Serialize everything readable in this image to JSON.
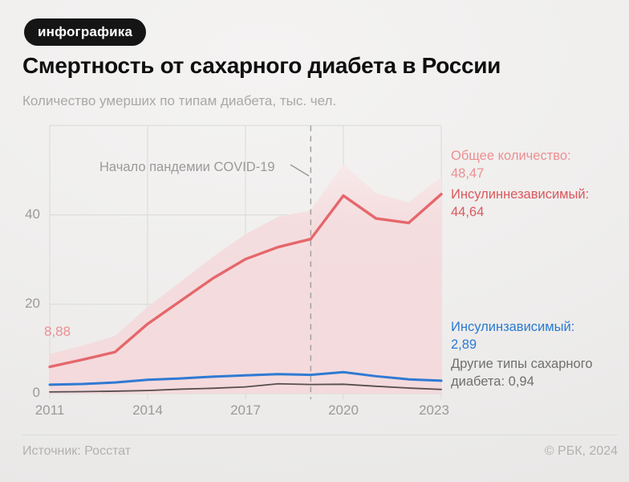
{
  "badge": {
    "label": "инфографика"
  },
  "header": {
    "title": "Смертность от сахарного диабета в России",
    "subtitle": "Количество умерших по типам диабета, тыс. чел."
  },
  "chart_data": {
    "type": "area",
    "unit": "тыс. чел.",
    "x": [
      2011,
      2012,
      2013,
      2014,
      2015,
      2016,
      2017,
      2018,
      2019,
      2020,
      2021,
      2022,
      2023
    ],
    "series": [
      {
        "name": "Общее количество",
        "kind": "area",
        "color": "#f5dbdd",
        "values": [
          8.88,
          10.7,
          12.9,
          19.4,
          25.0,
          30.6,
          35.7,
          39.6,
          41.0,
          51.3,
          44.9,
          42.8,
          48.47
        ]
      },
      {
        "name": "Инсулиннезависимый",
        "kind": "line",
        "color": "#e5676b",
        "width": 3.4,
        "values": [
          6.0,
          7.6,
          9.3,
          15.6,
          20.7,
          25.8,
          30.1,
          32.8,
          34.6,
          44.3,
          39.2,
          38.2,
          44.64
        ]
      },
      {
        "name": "Инсулинзависимый",
        "kind": "line",
        "color": "#2f7ad3",
        "width": 3,
        "values": [
          2.0,
          2.15,
          2.5,
          3.1,
          3.4,
          3.8,
          4.1,
          4.35,
          4.2,
          4.8,
          3.9,
          3.2,
          2.89
        ]
      },
      {
        "name": "Другие типы сахарного диабета",
        "kind": "line",
        "color": "#574d4f",
        "width": 1.8,
        "values": [
          0.38,
          0.45,
          0.55,
          0.7,
          1.0,
          1.2,
          1.5,
          2.2,
          2.05,
          2.1,
          1.65,
          1.25,
          0.94
        ]
      }
    ],
    "axes": {
      "x_ticks": [
        2011,
        2014,
        2017,
        2020,
        2023
      ],
      "y_ticks": [
        0,
        20,
        40
      ],
      "y_grid": [
        0,
        20,
        40,
        60
      ],
      "x_range": [
        2011,
        2023
      ],
      "y_range": [
        0,
        60
      ],
      "grid": true
    },
    "annotations": {
      "covid": {
        "label": "Начало пандемии COVID-19",
        "year": 2019,
        "style": "dashed-vertical-line"
      },
      "start_value": "8,88"
    },
    "legend_position": "right"
  },
  "legend": {
    "total": {
      "label": "Общее количество:",
      "value": "48,47",
      "color": "#ec8f92"
    },
    "type2": {
      "label": "Инсулиннезависимый:",
      "value": "44,64",
      "color": "#dc575c"
    },
    "type1": {
      "label": "Инсулинзависимый:",
      "value": "2,89",
      "color": "#2b7ad2"
    },
    "other": {
      "label": "Другие типы сахарного диабета:",
      "value": "0,94",
      "color": "#6f6f6f"
    }
  },
  "footer": {
    "source": "Источник: Росстат",
    "copyright": "© РБК, 2024"
  }
}
